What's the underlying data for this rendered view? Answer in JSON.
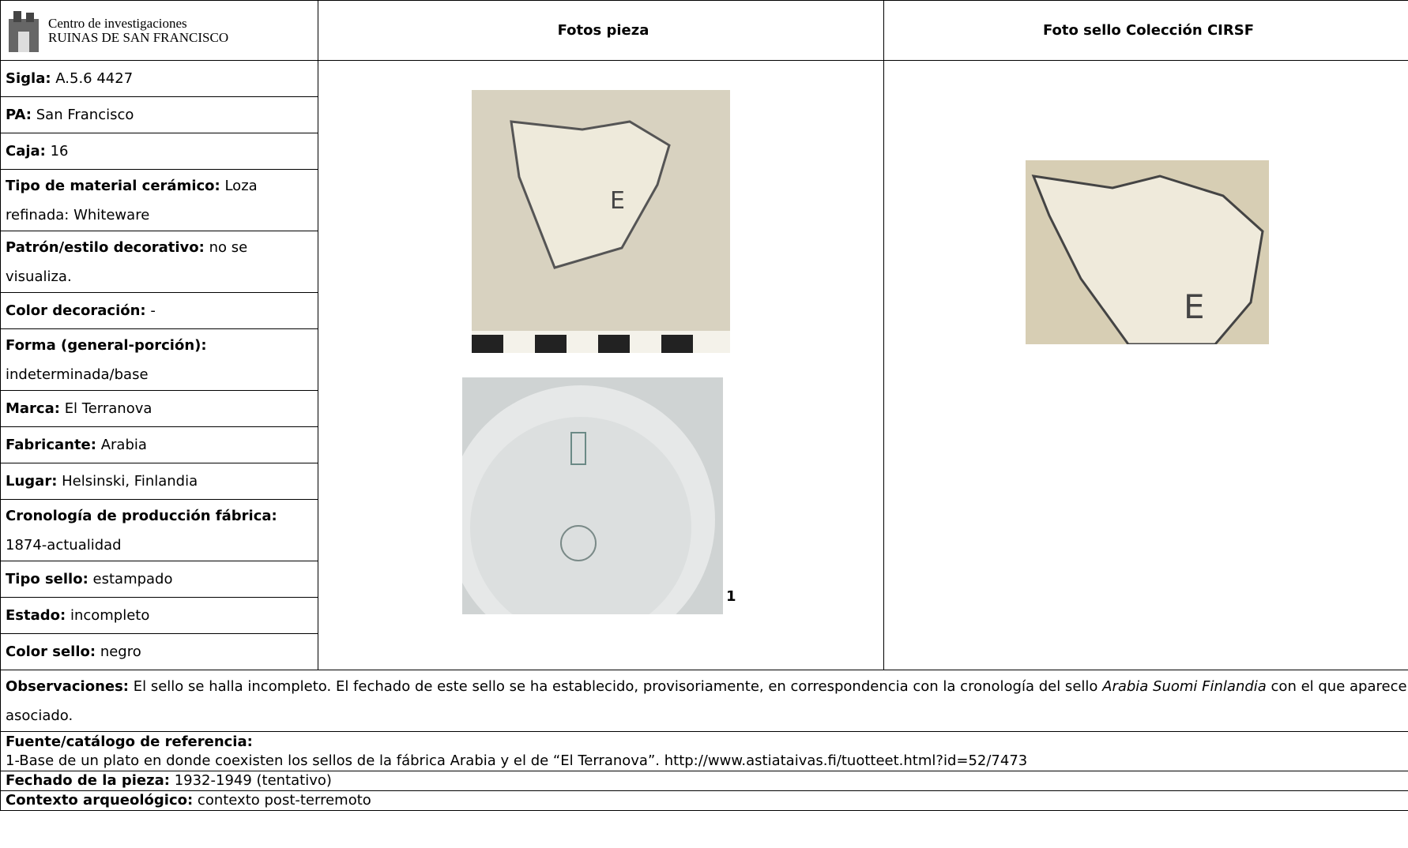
{
  "header": {
    "logo_line1": "Centro de investigaciones",
    "logo_line2": "RUINAS DE SAN FRANCISCO",
    "photos_piece": "Fotos pieza",
    "photo_seal": "Foto sello Colección CIRSF"
  },
  "fields": [
    {
      "label": "Sigla:",
      "value": "A.5.6 4427"
    },
    {
      "label": "PA:",
      "value": "San Francisco"
    },
    {
      "label": "Caja:",
      "value": "16"
    },
    {
      "label": "Tipo de material cerámico:",
      "value": "Loza refinada: Whiteware"
    },
    {
      "label": "Patrón/estilo decorativo:",
      "value": "no se visualiza."
    },
    {
      "label": "Color decoración:",
      "value": "-"
    },
    {
      "label": "Forma (general-porción):",
      "value": "indeterminada/base"
    },
    {
      "label": "Marca:",
      "value": "El Terranova"
    },
    {
      "label": "Fabricante:",
      "value": "Arabia"
    },
    {
      "label": "Lugar:",
      "value": "Helsinski, Finlandia"
    },
    {
      "label": "Cronología de producción fábrica:",
      "value": "1874-actualidad"
    },
    {
      "label": "Tipo sello:",
      "value": "estampado"
    },
    {
      "label": "Estado:",
      "value": "incompleto"
    },
    {
      "label": "Color sello:",
      "value": "negro"
    }
  ],
  "photo_note": "1",
  "observations": {
    "label": "Observaciones:",
    "text_before": "El sello se halla incompleto. El fechado de este sello se ha establecido, provisoriamente, en correspondencia con la cronología del sello ",
    "text_italic": "Arabia Suomi Finlandia",
    "text_after": " con el que aparece asociado."
  },
  "source": {
    "label": "Fuente/catálogo de referencia:",
    "text": "1-Base de un plato en donde coexisten los sellos de la fábrica Arabia y el de “El Terranova”. http://www.astiataivas.fi/tuotteet.html?id=52/7473"
  },
  "dating": {
    "label": "Fechado de la pieza:",
    "value": "1932-1949 (tentativo)"
  },
  "context": {
    "label": "Contexto arqueológico:",
    "value": "contexto post-terremoto"
  }
}
